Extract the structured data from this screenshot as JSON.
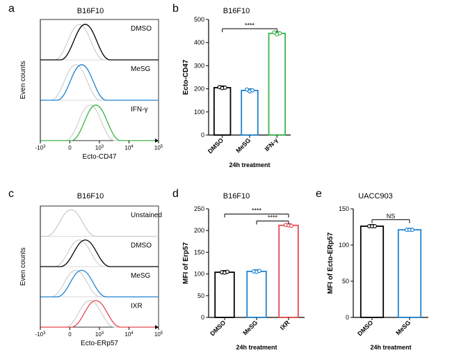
{
  "colors": {
    "black": "#000000",
    "gray": "#cbcbcb",
    "blue": "#1e82cf",
    "green": "#39b54a",
    "red": "#e6484c",
    "white": "#ffffff",
    "axis": "#000000",
    "lightAxis": "#888888"
  },
  "panelA": {
    "letter": "a",
    "title": "B16F10",
    "yLabel": "Even counts",
    "xLabel": "Ecto-CD47",
    "rows": [
      {
        "label": "DMSO",
        "color": "black",
        "light": "gray",
        "peak": 0.38
      },
      {
        "label": "MeSG",
        "color": "blue",
        "light": "gray",
        "peak": 0.35
      },
      {
        "label": "IFN-γ",
        "color": "green",
        "light": "gray",
        "peak": 0.47
      }
    ],
    "xticks": [
      "-10^3",
      "0",
      "10^3",
      "10^4",
      "10^5"
    ]
  },
  "panelB": {
    "letter": "b",
    "title": "B16F10",
    "sig": {
      "label": "****",
      "from": 0,
      "to": 2,
      "y": 460
    },
    "yLabel": "Ecto-CD47",
    "xLabel": "24h treatment",
    "ylim": [
      0,
      500
    ],
    "ytick": 100,
    "bars": [
      {
        "name": "DMSO",
        "value": 205,
        "color": "black",
        "points": [
          207,
          203,
          205
        ]
      },
      {
        "name": "MeSG",
        "value": 193,
        "color": "blue",
        "points": [
          197,
          189,
          193
        ]
      },
      {
        "name": "IFN-γ",
        "value": 440,
        "color": "green",
        "points": [
          444,
          436,
          440
        ]
      }
    ],
    "barWidth": 0.6
  },
  "panelC": {
    "letter": "c",
    "title": "B16F10",
    "yLabel": "Even counts",
    "xLabel": "Ecto-ERp57",
    "rows": [
      {
        "label": "Unstained",
        "color": "gray",
        "light": null,
        "peak": 0.26
      },
      {
        "label": "DMSO",
        "color": "black",
        "light": "gray",
        "peak": 0.38
      },
      {
        "label": "MeSG",
        "color": "blue",
        "light": "gray",
        "peak": 0.35
      },
      {
        "label": "IXR",
        "color": "red",
        "light": "gray",
        "peak": 0.47
      }
    ],
    "xticks": [
      "-10^3",
      "0",
      "10^3",
      "10^4",
      "10^5"
    ]
  },
  "panelD": {
    "letter": "d",
    "title": "B16F10",
    "yLabel": "MFI of Erp57",
    "xLabel": "24h treatment",
    "ylim": [
      0,
      250
    ],
    "ytick": 50,
    "sig": [
      {
        "from": 0,
        "to": 2,
        "y": 238,
        "label": "****"
      },
      {
        "from": 1,
        "to": 2,
        "y": 222,
        "label": "****"
      }
    ],
    "bars": [
      {
        "name": "DMSO",
        "value": 104,
        "color": "black",
        "points": [
          104,
          103,
          105
        ]
      },
      {
        "name": "MeSG",
        "value": 106,
        "color": "blue",
        "points": [
          106,
          105,
          107
        ]
      },
      {
        "name": "IXR",
        "value": 212,
        "color": "red",
        "points": [
          213,
          212,
          211
        ]
      }
    ],
    "barWidth": 0.6
  },
  "panelE": {
    "letter": "e",
    "title": "UACC903",
    "yLabel": "MFI of Ecto-ERp57",
    "xLabel": "24h treatment",
    "ylim": [
      0,
      150
    ],
    "ytick": 50,
    "sig": [
      {
        "from": 0,
        "to": 1,
        "y": 135,
        "label": "NS"
      }
    ],
    "bars": [
      {
        "name": "DMSO",
        "value": 126,
        "color": "black",
        "points": [
          126,
          126,
          126
        ]
      },
      {
        "name": "MeSG",
        "value": 121,
        "color": "blue",
        "points": [
          121,
          121,
          121
        ]
      }
    ],
    "barWidth": 0.6
  }
}
